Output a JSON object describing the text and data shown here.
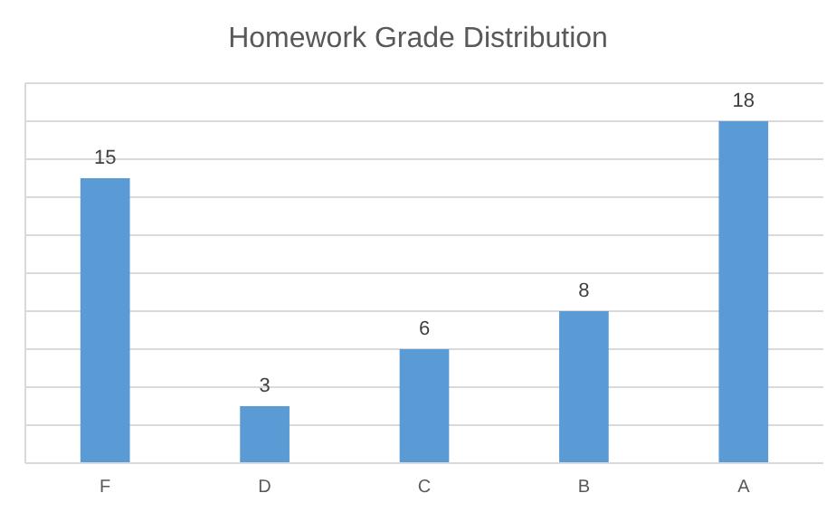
{
  "chart_data": {
    "type": "bar",
    "title": "Homework Grade Distribution",
    "categories": [
      "F",
      "D",
      "C",
      "B",
      "A"
    ],
    "values": [
      15,
      3,
      6,
      8,
      18
    ],
    "color": "#5b9bd5",
    "ylim": [
      0,
      20
    ],
    "yticks": [
      {
        "value": 0,
        "label": null
      },
      {
        "value": 2,
        "label": null
      },
      {
        "value": 4,
        "label": null
      },
      {
        "value": 6,
        "label": null
      },
      {
        "value": 8,
        "label": null
      },
      {
        "value": 10,
        "label": null
      },
      {
        "value": 12,
        "label": null
      },
      {
        "value": 14,
        "label": null
      },
      {
        "value": 16,
        "label": null
      },
      {
        "value": 18,
        "label": null
      },
      {
        "value": 20,
        "label": null
      }
    ],
    "grid": "y",
    "tick_labels": "x",
    "data_labels": true
  }
}
